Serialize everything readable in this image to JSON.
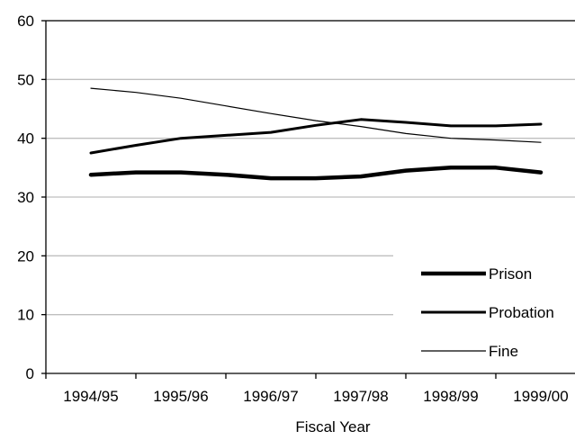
{
  "chart_data": {
    "type": "line",
    "title": "",
    "xlabel": "Fiscal Year",
    "ylabel": "",
    "ylim": [
      0,
      60
    ],
    "yticks": [
      "0",
      "10",
      "20",
      "30",
      "40",
      "50",
      "60"
    ],
    "categories": [
      "1994/95",
      "1995/96",
      "1996/97",
      "1997/98",
      "1998/99",
      "1999/00"
    ],
    "grid": "horizontal",
    "legend_position": "bottom-right",
    "series": [
      {
        "name": "Prison",
        "x": [
          0,
          0.5,
          1,
          1.5,
          2,
          2.5,
          3,
          3.5,
          4,
          4.5,
          5
        ],
        "values": [
          33.8,
          34.2,
          34.2,
          33.8,
          33.2,
          33.2,
          33.5,
          34.5,
          35.0,
          35.0,
          34.2
        ],
        "color": "#000000",
        "weight": "heavy"
      },
      {
        "name": "Probation",
        "x": [
          0,
          0.5,
          1,
          1.5,
          2,
          2.5,
          3,
          3.5,
          4,
          4.5,
          5
        ],
        "values": [
          37.5,
          38.8,
          40.0,
          40.5,
          41.0,
          42.2,
          43.2,
          42.7,
          42.1,
          42.1,
          42.4
        ],
        "color": "#000000",
        "weight": "medium"
      },
      {
        "name": "Fine",
        "x": [
          0,
          0.5,
          1,
          1.5,
          2,
          2.5,
          3,
          3.5,
          4,
          4.5,
          5
        ],
        "values": [
          48.5,
          47.8,
          46.8,
          45.5,
          44.2,
          43.0,
          42.0,
          40.8,
          40.0,
          39.7,
          39.3
        ],
        "color": "#000000",
        "weight": "thin"
      }
    ]
  }
}
